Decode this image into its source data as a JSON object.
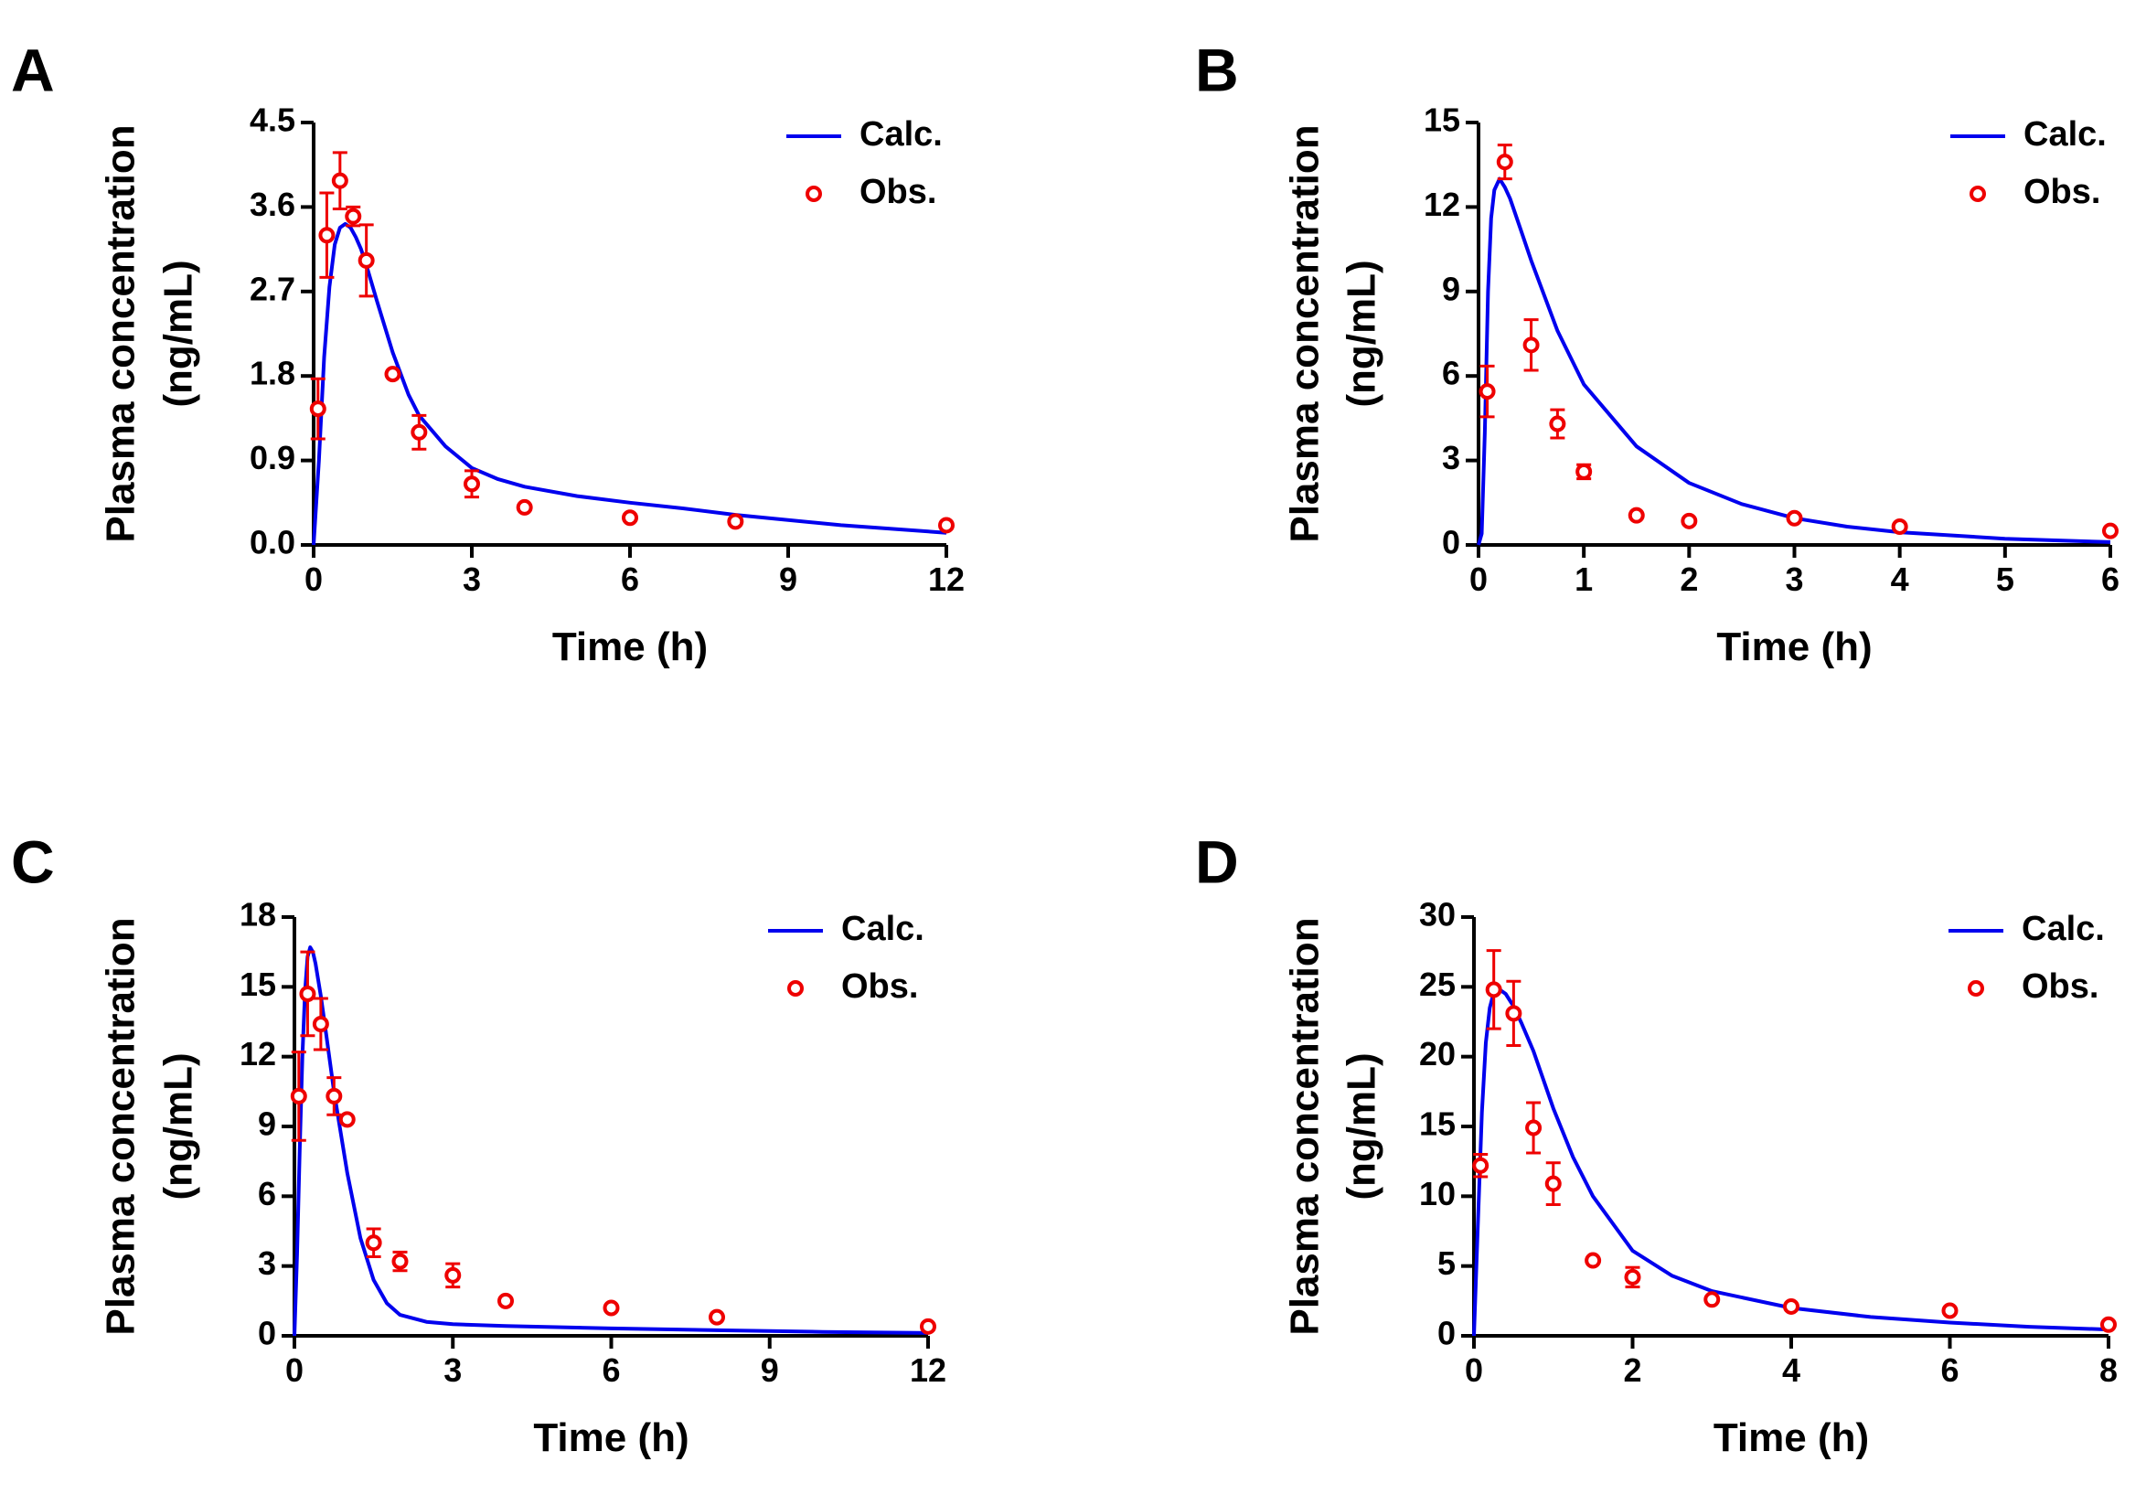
{
  "figure": {
    "panels": [
      "A",
      "B",
      "C",
      "D"
    ]
  },
  "chart_data": [
    {
      "type": "line",
      "panel": "A",
      "xlabel": "Time (h)",
      "ylabel_line1": "Plasma concentration",
      "ylabel_line2": "(ng/mL)",
      "xlim": [
        0,
        12
      ],
      "ylim": [
        0,
        4.5
      ],
      "xticks": [
        0,
        3,
        6,
        9,
        12
      ],
      "xtick_labels": [
        "0",
        "3",
        "6",
        "9",
        "12"
      ],
      "yticks": [
        0,
        0.9,
        1.8,
        2.7,
        3.6,
        4.5
      ],
      "ytick_labels": [
        "0.0",
        "0.9",
        "1.8",
        "2.7",
        "3.6",
        "4.5"
      ],
      "legend": {
        "position": "top-right",
        "calc_label": "Calc.",
        "obs_label": "Obs."
      },
      "series": [
        {
          "name": "Calc.",
          "style": "line",
          "color": "#0000ee",
          "x": [
            0,
            0.1,
            0.2,
            0.3,
            0.4,
            0.5,
            0.6,
            0.7,
            0.8,
            0.9,
            1.0,
            1.2,
            1.5,
            1.8,
            2.0,
            2.5,
            3.0,
            3.5,
            4.0,
            5.0,
            6.0,
            7.0,
            8.0,
            10.0,
            12.0
          ],
          "y": [
            0,
            0.9,
            2.0,
            2.75,
            3.2,
            3.38,
            3.42,
            3.38,
            3.28,
            3.15,
            2.98,
            2.6,
            2.05,
            1.6,
            1.38,
            1.05,
            0.82,
            0.7,
            0.62,
            0.52,
            0.45,
            0.39,
            0.32,
            0.21,
            0.13
          ]
        },
        {
          "name": "Obs.",
          "style": "marker",
          "color": "#ee0000",
          "x": [
            0.083,
            0.25,
            0.5,
            0.75,
            1.0,
            1.5,
            2.0,
            3.0,
            4.0,
            6.0,
            8.0,
            12.0
          ],
          "y": [
            1.45,
            3.3,
            3.88,
            3.5,
            3.03,
            1.82,
            1.2,
            0.65,
            0.4,
            0.29,
            0.25,
            0.21
          ],
          "err": [
            0.32,
            0.45,
            0.3,
            0.1,
            0.38,
            0.0,
            0.18,
            0.14,
            0.0,
            0.0,
            0.0,
            0.0
          ]
        }
      ]
    },
    {
      "type": "line",
      "panel": "B",
      "xlabel": "Time (h)",
      "ylabel_line1": "Plasma concentration",
      "ylabel_line2": "(ng/mL)",
      "xlim": [
        0,
        6
      ],
      "ylim": [
        0,
        15
      ],
      "xticks": [
        0,
        1,
        2,
        3,
        4,
        5,
        6
      ],
      "xtick_labels": [
        "0",
        "1",
        "2",
        "3",
        "4",
        "5",
        "6"
      ],
      "yticks": [
        0,
        3,
        6,
        9,
        12,
        15
      ],
      "ytick_labels": [
        "0",
        "3",
        "6",
        "9",
        "12",
        "15"
      ],
      "legend": {
        "position": "top-right",
        "calc_label": "Calc.",
        "obs_label": "Obs."
      },
      "series": [
        {
          "name": "Calc.",
          "style": "line",
          "color": "#0000ee",
          "x": [
            0,
            0.03,
            0.06,
            0.09,
            0.12,
            0.15,
            0.2,
            0.25,
            0.3,
            0.4,
            0.5,
            0.75,
            1.0,
            1.5,
            2.0,
            2.5,
            3.0,
            3.5,
            4.0,
            5.0,
            6.0
          ],
          "y": [
            0,
            0.4,
            4.0,
            9.0,
            11.6,
            12.6,
            13.0,
            12.7,
            12.3,
            11.2,
            10.1,
            7.6,
            5.7,
            3.5,
            2.2,
            1.45,
            0.95,
            0.65,
            0.45,
            0.22,
            0.1
          ]
        },
        {
          "name": "Obs.",
          "style": "marker",
          "color": "#ee0000",
          "x": [
            0.083,
            0.25,
            0.5,
            0.75,
            1.0,
            1.5,
            2.0,
            3.0,
            4.0,
            6.0
          ],
          "y": [
            5.45,
            13.6,
            7.1,
            4.3,
            2.6,
            1.05,
            0.85,
            0.95,
            0.65,
            0.5
          ],
          "err": [
            0.9,
            0.6,
            0.9,
            0.5,
            0.25,
            0.0,
            0.0,
            0.0,
            0.0,
            0.0
          ]
        }
      ]
    },
    {
      "type": "line",
      "panel": "C",
      "xlabel": "Time (h)",
      "ylabel_line1": "Plasma concentration",
      "ylabel_line2": "(ng/mL)",
      "xlim": [
        0,
        12
      ],
      "ylim": [
        0,
        18
      ],
      "xticks": [
        0,
        3,
        6,
        9,
        12
      ],
      "xtick_labels": [
        "0",
        "3",
        "6",
        "9",
        "12"
      ],
      "yticks": [
        0,
        3,
        6,
        9,
        12,
        15,
        18
      ],
      "ytick_labels": [
        "0",
        "3",
        "6",
        "9",
        "12",
        "15",
        "18"
      ],
      "legend": {
        "position": "top-right",
        "calc_label": "Calc.",
        "obs_label": "Obs."
      },
      "series": [
        {
          "name": "Calc.",
          "style": "line",
          "color": "#0000ee",
          "x": [
            0,
            0.05,
            0.1,
            0.15,
            0.2,
            0.25,
            0.3,
            0.35,
            0.4,
            0.5,
            0.6,
            0.75,
            1.0,
            1.25,
            1.5,
            1.75,
            2.0,
            2.5,
            3.0,
            4.0,
            6.0,
            8.0,
            10.0,
            12.0
          ],
          "y": [
            0,
            3.5,
            8.0,
            12.0,
            14.8,
            16.3,
            16.7,
            16.5,
            16.0,
            14.6,
            13.0,
            10.5,
            7.0,
            4.2,
            2.4,
            1.4,
            0.9,
            0.6,
            0.5,
            0.42,
            0.32,
            0.24,
            0.17,
            0.12
          ]
        },
        {
          "name": "Obs.",
          "style": "marker",
          "color": "#ee0000",
          "x": [
            0.083,
            0.25,
            0.5,
            0.75,
            1.0,
            1.5,
            2.0,
            3.0,
            4.0,
            6.0,
            8.0,
            12.0
          ],
          "y": [
            10.3,
            14.7,
            13.4,
            10.3,
            9.3,
            4.0,
            3.2,
            2.6,
            1.5,
            1.2,
            0.8,
            0.4
          ],
          "err": [
            1.9,
            1.8,
            1.1,
            0.8,
            0.0,
            0.6,
            0.4,
            0.5,
            0.0,
            0.0,
            0.0,
            0.0
          ]
        }
      ]
    },
    {
      "type": "line",
      "panel": "D",
      "xlabel": "Time (h)",
      "ylabel_line1": "Plasma concentration",
      "ylabel_line2": "(ng/mL)",
      "xlim": [
        0,
        8
      ],
      "ylim": [
        0,
        30
      ],
      "xticks": [
        0,
        2,
        4,
        6,
        8
      ],
      "xtick_labels": [
        "0",
        "2",
        "4",
        "6",
        "8"
      ],
      "yticks": [
        0,
        5,
        10,
        15,
        20,
        25,
        30
      ],
      "ytick_labels": [
        "0",
        "5",
        "10",
        "15",
        "20",
        "25",
        "30"
      ],
      "legend": {
        "position": "top-right",
        "calc_label": "Calc.",
        "obs_label": "Obs."
      },
      "series": [
        {
          "name": "Calc.",
          "style": "line",
          "color": "#0000ee",
          "x": [
            0,
            0.05,
            0.1,
            0.15,
            0.2,
            0.25,
            0.3,
            0.4,
            0.5,
            0.6,
            0.75,
            1.0,
            1.25,
            1.5,
            2.0,
            2.5,
            3.0,
            4.0,
            5.0,
            6.0,
            7.0,
            8.0
          ],
          "y": [
            0,
            8.0,
            16.0,
            21.0,
            23.5,
            24.6,
            24.9,
            24.5,
            23.6,
            22.4,
            20.4,
            16.3,
            12.8,
            10.0,
            6.1,
            4.3,
            3.2,
            2.0,
            1.35,
            0.95,
            0.65,
            0.45
          ]
        },
        {
          "name": "Obs.",
          "style": "marker",
          "color": "#ee0000",
          "x": [
            0.083,
            0.25,
            0.5,
            0.75,
            1.0,
            1.5,
            2.0,
            3.0,
            4.0,
            6.0,
            8.0
          ],
          "y": [
            12.2,
            24.8,
            23.1,
            14.9,
            10.9,
            5.4,
            4.2,
            2.6,
            2.1,
            1.8,
            0.8
          ],
          "err": [
            0.8,
            2.8,
            2.3,
            1.8,
            1.5,
            0.0,
            0.7,
            0.0,
            0.0,
            0.0,
            0.0
          ]
        }
      ]
    }
  ]
}
